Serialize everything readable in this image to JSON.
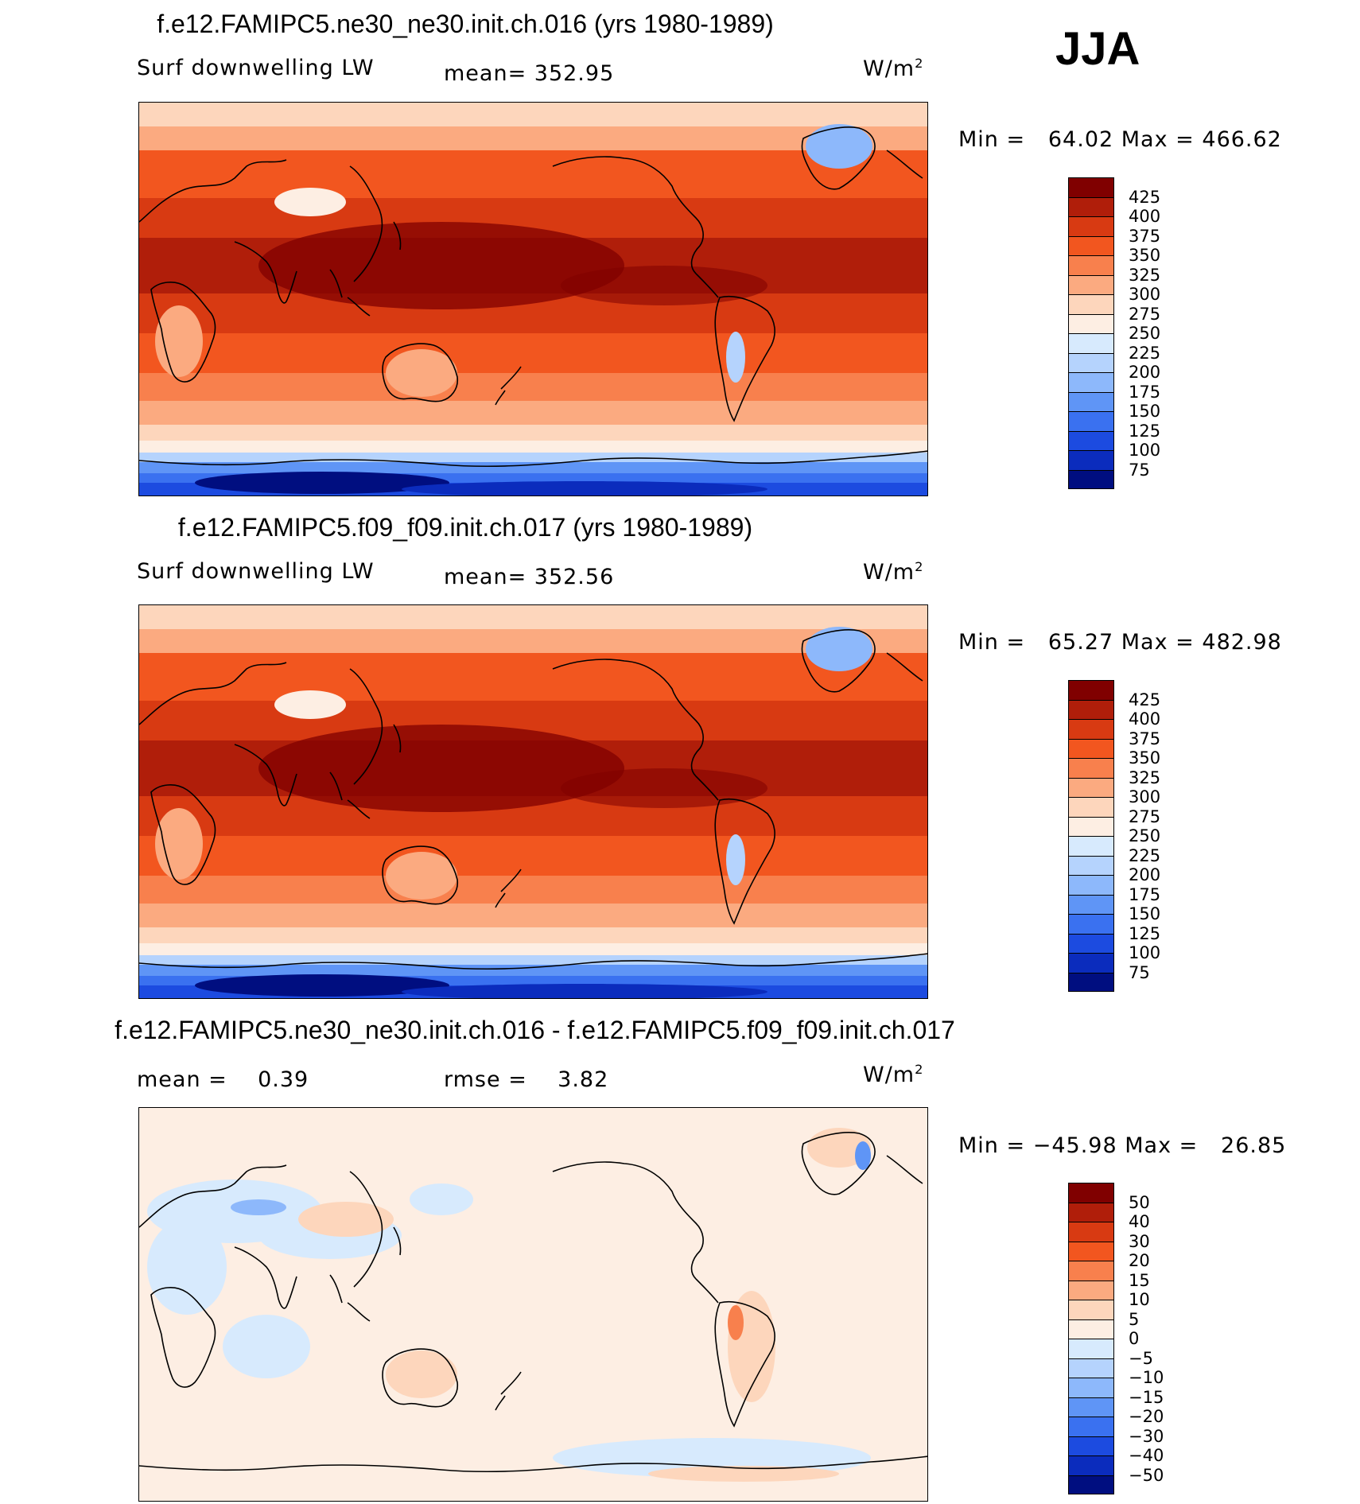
{
  "season": "JJA",
  "panels": [
    {
      "title": "f.e12.FAMIPC5.ne30_ne30.init.ch.016 (yrs 1980-1989)",
      "left_label": "Surf downwelling LW",
      "center_label": "mean= 352.95",
      "units": "W/m",
      "units_sup": "2",
      "min_label": "Min =",
      "min_value": "64.02",
      "max_label": "Max =",
      "max_value": "466.62",
      "kind": "field"
    },
    {
      "title": "f.e12.FAMIPC5.f09_f09.init.ch.017 (yrs 1980-1989)",
      "left_label": "Surf downwelling LW",
      "center_label": "mean= 352.56",
      "units": "W/m",
      "units_sup": "2",
      "min_label": "Min =",
      "min_value": "65.27",
      "max_label": "Max =",
      "max_value": "482.98",
      "kind": "field"
    },
    {
      "title": "f.e12.FAMIPC5.ne30_ne30.init.ch.016 - f.e12.FAMIPC5.f09_f09.init.ch.017",
      "left_label": "mean =    0.39",
      "center_label": "rmse =    3.82",
      "units": "W/m",
      "units_sup": "2",
      "min_label": "Min =",
      "min_value": "−45.98",
      "max_label": "Max =",
      "max_value": "26.85",
      "kind": "diff"
    }
  ],
  "colorbars": {
    "field": {
      "ticks": [
        "425",
        "400",
        "375",
        "350",
        "325",
        "300",
        "275",
        "250",
        "225",
        "200",
        "175",
        "150",
        "125",
        "100",
        "75"
      ],
      "colors": [
        "#800000",
        "#b01e0a",
        "#d83a12",
        "#f2561f",
        "#f8804d",
        "#fbaa80",
        "#fdd6bc",
        "#fdeee3",
        "#d7eafd",
        "#b5d3fd",
        "#8db8fb",
        "#5f95f6",
        "#3a71f0",
        "#1c4be0",
        "#0b2cbd",
        "#000e80"
      ]
    },
    "diff": {
      "ticks": [
        "50",
        "40",
        "30",
        "20",
        "15",
        "10",
        "5",
        "0",
        "−5",
        "−10",
        "−15",
        "−20",
        "−30",
        "−40",
        "−50"
      ],
      "colors": [
        "#800000",
        "#b01e0a",
        "#d83a12",
        "#f2561f",
        "#f8804d",
        "#fbaa80",
        "#fdd6bc",
        "#fdeee3",
        "#d7eafd",
        "#b5d3fd",
        "#8db8fb",
        "#5f95f6",
        "#3a71f0",
        "#1c4be0",
        "#0b2cbd",
        "#000e80"
      ]
    }
  }
}
